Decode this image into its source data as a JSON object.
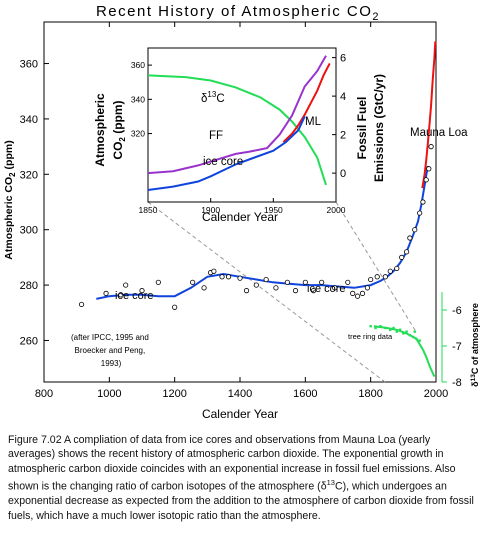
{
  "chart_data": {
    "title": "Recent History of Atmospheric CO",
    "title_subscript": "2",
    "main": {
      "type": "line",
      "xlabel": "Calender Year",
      "ylabel": "Atmospheric CO2 (ppm)",
      "ylabel_parts": [
        "Atmospheric",
        "CO",
        "2",
        "(ppm)"
      ],
      "xlim": [
        800,
        2000
      ],
      "ylim": [
        245,
        375
      ],
      "x_ticks": [
        "800",
        "1000",
        "1200",
        "1400",
        "1600",
        "1800",
        "2000"
      ],
      "x_tick_values": [
        800,
        1000,
        1200,
        1400,
        1600,
        1800,
        2000
      ],
      "y_ticks": [
        "260",
        "280",
        "300",
        "320",
        "340",
        "360"
      ],
      "y_tick_values": [
        260,
        280,
        300,
        320,
        340,
        360
      ],
      "ice_core_points": [
        [
          915,
          273
        ],
        [
          990,
          277
        ],
        [
          1035,
          276.5
        ],
        [
          1050,
          280
        ],
        [
          1100,
          278
        ],
        [
          1150,
          281
        ],
        [
          1200,
          272
        ],
        [
          1255,
          281
        ],
        [
          1290,
          279
        ],
        [
          1310,
          284.5
        ],
        [
          1320,
          285
        ],
        [
          1345,
          283
        ],
        [
          1365,
          283
        ],
        [
          1400,
          282.5
        ],
        [
          1420,
          278
        ],
        [
          1450,
          280
        ],
        [
          1480,
          282
        ],
        [
          1510,
          279
        ],
        [
          1545,
          281
        ],
        [
          1570,
          278
        ],
        [
          1600,
          281
        ],
        [
          1625,
          278
        ],
        [
          1650,
          281
        ],
        [
          1690,
          279
        ],
        [
          1730,
          281
        ],
        [
          1745,
          277
        ],
        [
          1760,
          276
        ],
        [
          1775,
          277
        ],
        [
          1790,
          279
        ],
        [
          1800,
          282
        ],
        [
          1820,
          283
        ],
        [
          1845,
          283
        ],
        [
          1860,
          285
        ],
        [
          1880,
          286
        ],
        [
          1895,
          290
        ],
        [
          1910,
          292
        ],
        [
          1920,
          297
        ],
        [
          1935,
          300
        ],
        [
          1950,
          306
        ],
        [
          1960,
          310
        ],
        [
          1970,
          318
        ],
        [
          1978,
          322
        ],
        [
          1985,
          330
        ]
      ],
      "ice_core_line": [
        [
          960,
          275
        ],
        [
          1000,
          276
        ],
        [
          1050,
          276.5
        ],
        [
          1100,
          276.5
        ],
        [
          1150,
          276
        ],
        [
          1200,
          276
        ],
        [
          1250,
          279
        ],
        [
          1300,
          283
        ],
        [
          1350,
          284
        ],
        [
          1400,
          283
        ],
        [
          1450,
          282
        ],
        [
          1500,
          281
        ],
        [
          1550,
          280.5
        ],
        [
          1600,
          280
        ],
        [
          1650,
          280
        ],
        [
          1700,
          279.5
        ],
        [
          1750,
          279
        ],
        [
          1800,
          280
        ],
        [
          1830,
          281.5
        ],
        [
          1850,
          283
        ],
        [
          1870,
          285
        ],
        [
          1890,
          288
        ],
        [
          1910,
          292
        ],
        [
          1930,
          298
        ],
        [
          1945,
          303
        ],
        [
          1955,
          309
        ],
        [
          1965,
          316
        ],
        [
          1975,
          323
        ]
      ],
      "mauna_loa_line": [
        [
          1958,
          315
        ],
        [
          1965,
          320
        ],
        [
          1970,
          325
        ],
        [
          1975,
          331
        ],
        [
          1980,
          338
        ],
        [
          1985,
          345
        ],
        [
          1990,
          354
        ],
        [
          1995,
          362
        ],
        [
          1998,
          368
        ]
      ],
      "annotations": {
        "ice_core_left": "ice core",
        "ice_core_right": "ice core",
        "mauna_loa": "Mauna Loa",
        "citation": [
          "(after IPCC, 1995 and",
          "Broecker and Peng,",
          "1993)"
        ]
      }
    },
    "delta13c": {
      "type": "scatter",
      "ylabel": "δ13C of atmosphere",
      "ylabel_parts": [
        "δ",
        "13",
        "C of atmosphere"
      ],
      "ylim": [
        -8,
        -5.5
      ],
      "y_ticks": [
        "-6",
        "-7",
        "-8"
      ],
      "y_tick_values": [
        -6,
        -7,
        -8
      ],
      "annotation": "tree ring data",
      "points": [
        [
          1800,
          -6.45
        ],
        [
          1815,
          -6.5
        ],
        [
          1830,
          -6.45
        ],
        [
          1845,
          -6.5
        ],
        [
          1860,
          -6.55
        ],
        [
          1870,
          -6.5
        ],
        [
          1880,
          -6.6
        ],
        [
          1890,
          -6.55
        ],
        [
          1900,
          -6.65
        ],
        [
          1910,
          -6.6
        ],
        [
          1920,
          -6.7
        ],
        [
          1930,
          -6.75
        ],
        [
          1935,
          -6.6
        ],
        [
          1940,
          -6.8
        ],
        [
          1950,
          -6.85
        ]
      ],
      "line": [
        [
          1810,
          -6.45
        ],
        [
          1850,
          -6.5
        ],
        [
          1880,
          -6.55
        ],
        [
          1910,
          -6.65
        ],
        [
          1940,
          -6.8
        ],
        [
          1960,
          -7.1
        ],
        [
          1970,
          -7.3
        ],
        [
          1980,
          -7.55
        ],
        [
          1990,
          -7.75
        ],
        [
          1995,
          -7.85
        ]
      ]
    },
    "inset": {
      "type": "line",
      "xlabel": "Calender Year",
      "ylabel_left": "Atmospheric CO2 (ppm)",
      "ylabel_left_parts": [
        "Atmospheric",
        "CO",
        "2",
        "(ppm)"
      ],
      "ylabel_right": "Fossil Fuel Emissions (GtC/yr)",
      "ylabel_right_parts": [
        "Fossil Fuel",
        "Emissions (GtC/yr)"
      ],
      "xlim": [
        1850,
        2000
      ],
      "ylim_left": [
        280,
        370
      ],
      "ylim_right": [
        -1.5,
        6.5
      ],
      "x_ticks": [
        "1850",
        "1900",
        "1950",
        "2000"
      ],
      "x_tick_values": [
        1850,
        1900,
        1950,
        2000
      ],
      "y_ticks_left": [
        "320",
        "340",
        "360"
      ],
      "y_tick_values_left": [
        320,
        340,
        360
      ],
      "y_ticks_right": [
        "0",
        "2",
        "4",
        "6"
      ],
      "y_tick_values_right": [
        0,
        2,
        4,
        6
      ],
      "series": [
        {
          "name": "δ13C",
          "color": "#22dd55",
          "axis": "d13c",
          "points": [
            [
              1850,
              354
            ],
            [
              1880,
              353
            ],
            [
              1900,
              351
            ],
            [
              1920,
              347
            ],
            [
              1940,
              341
            ],
            [
              1955,
              334
            ],
            [
              1965,
              327
            ],
            [
              1975,
              318
            ],
            [
              1985,
              306
            ],
            [
              1992,
              290
            ]
          ]
        },
        {
          "name": "FF",
          "color": "#9933cc",
          "axis": "right",
          "points": [
            [
              1850,
              0
            ],
            [
              1870,
              0.1
            ],
            [
              1890,
              0.4
            ],
            [
              1910,
              0.8
            ],
            [
              1920,
              1.0
            ],
            [
              1930,
              1.1
            ],
            [
              1945,
              1.3
            ],
            [
              1955,
              2.0
            ],
            [
              1965,
              3.0
            ],
            [
              1975,
              4.5
            ],
            [
              1985,
              5.3
            ],
            [
              1992,
              6.1
            ]
          ]
        },
        {
          "name": "ML",
          "color": "#ee1111",
          "axis": "left",
          "points": [
            [
              1958,
              315
            ],
            [
              1965,
              320
            ],
            [
              1970,
              325
            ],
            [
              1975,
              331
            ],
            [
              1980,
              338
            ],
            [
              1985,
              345
            ],
            [
              1990,
              354
            ],
            [
              1995,
              361
            ]
          ]
        },
        {
          "name": "ice core",
          "color": "#1144dd",
          "axis": "left",
          "points": [
            [
              1850,
              287
            ],
            [
              1870,
              289
            ],
            [
              1890,
              292
            ],
            [
              1900,
              295
            ],
            [
              1920,
              302
            ],
            [
              1935,
              306
            ],
            [
              1950,
              310
            ],
            [
              1960,
              315
            ],
            [
              1970,
              322
            ],
            [
              1975,
              330
            ]
          ]
        }
      ],
      "labels": {
        "d13c": "δ",
        "d13c_sup": "13",
        "d13c_tail": "C",
        "ff": "FF",
        "ml": "ML",
        "ice_core": "ice core"
      }
    },
    "colors": {
      "ice_core": "#1144dd",
      "mauna_loa": "#ee1111",
      "delta13c": "#22dd55",
      "fossil_fuel": "#9933cc"
    }
  },
  "caption": {
    "prefix": "Figure 7.02 A compliation of data from ice cores and observations from Mauna Loa (yearly averages) shows the recent history of atmospheric carbon dioxide. The exponential growth in atmospheric carbon dioxide coincides with an exponential increase in fossil fuel emissions. Also shown is the changing ratio of carbon isotopes of the atmosphere (",
    "delta": "δ",
    "sup": "13",
    "suffix": "C), which undergoes an exponential decrease as expected from the addition to the atmosphere of carbon dioxide from fossil fuels, which have a much lower isotopic ratio than the atmosphere."
  }
}
